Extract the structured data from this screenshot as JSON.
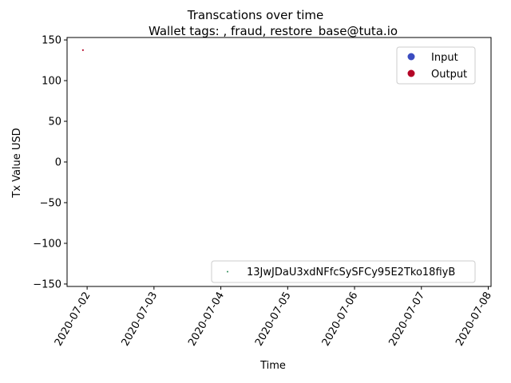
{
  "chart_data": {
    "type": "scatter",
    "title": "Transcations over time",
    "subtitle": "Wallet tags: , fraud, restore_base@tuta.io",
    "xlabel": "Time",
    "ylabel": "Tx Value USD",
    "x_ticks": [
      "2020-07-02",
      "2020-07-03",
      "2020-07-04",
      "2020-07-05",
      "2020-07-06",
      "2020-07-07",
      "2020-07-08"
    ],
    "xlim": [
      "2020-07-01T16:48",
      "2020-07-08T01:00"
    ],
    "ylim": [
      -153,
      153
    ],
    "y_ticks": [
      150,
      100,
      50,
      0,
      -50,
      -100,
      -150
    ],
    "y_tick_labels": [
      "150",
      "100",
      "50",
      "0",
      "−50",
      "−100",
      "−150"
    ],
    "grid": false,
    "legend_type": {
      "placement": "upper-right",
      "entries": [
        {
          "label": "Input",
          "color": "#3b4cc0"
        },
        {
          "label": "Output",
          "color": "#b40426"
        }
      ]
    },
    "legend_wallet": {
      "placement": "lower-right",
      "entries": [
        {
          "label": "13JwJDaU3xdNFfcSySFCy95E2Tko18fiyB",
          "color": "#2e8b57"
        }
      ]
    },
    "series": [
      {
        "name": "Output",
        "color": "#b40426",
        "points": [
          {
            "x": "2020-07-01T22:30",
            "y": 137.5
          }
        ]
      }
    ]
  }
}
